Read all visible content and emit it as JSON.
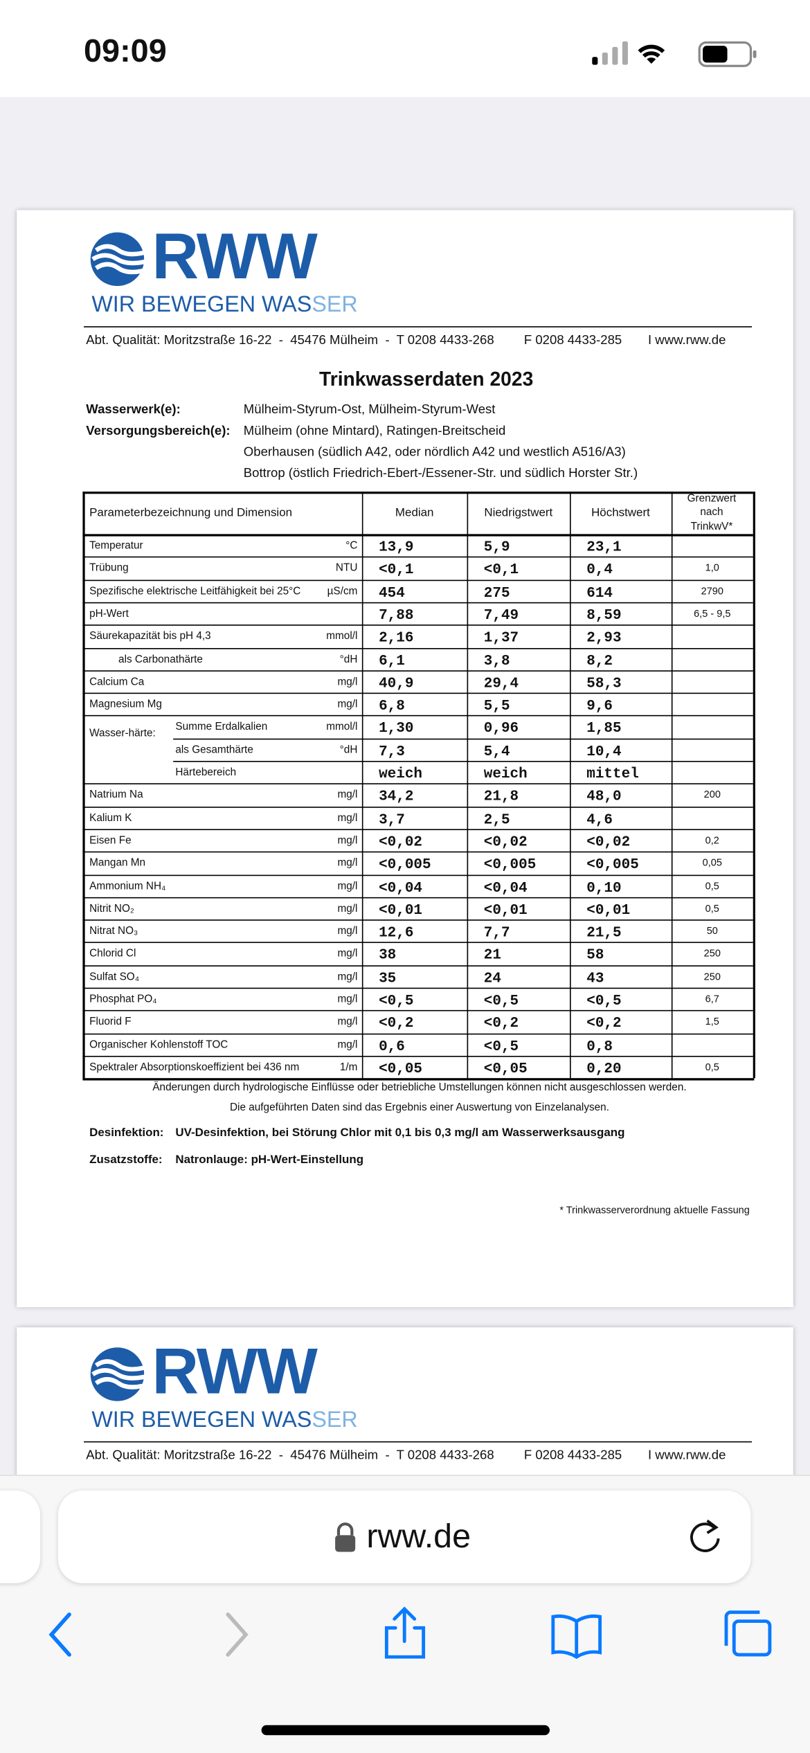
{
  "status_bar": {
    "time": "09:09"
  },
  "page1": {
    "logo": {
      "wordmark": "RWW",
      "tagline_main": "WIR BEWEGEN WAS",
      "tagline_accent": "SER"
    },
    "contact": {
      "address": "Abt. Qualität: Moritzstraße 16-22  -  45476 Mülheim  -  T 0208 4433-268",
      "fax": "F 0208 4433-285",
      "web": "I www.rww.de"
    },
    "title": "Trinkwasserdaten 2023",
    "info": [
      {
        "label": "Wasserwerk(e):",
        "lines": [
          "Mülheim-Styrum-Ost, Mülheim-Styrum-West"
        ]
      },
      {
        "label": "Versorgungsbereich(e):",
        "lines": [
          "Mülheim (ohne Mintard), Ratingen-Breitscheid",
          "Oberhausen (südlich A42, oder nördlich A42 und westlich A516/A3)",
          "Bottrop (östlich Friedrich-Ebert-/Essener-Str. und südlich Horster Str.)"
        ]
      }
    ],
    "table": {
      "headers": [
        "Parameterbezeichnung und Dimension",
        "Median",
        "Niedrigstwert",
        "Höchstwert",
        "Grenzwert nach TrinkwV*"
      ],
      "rows": [
        {
          "name": "Temperatur",
          "unit": "°C",
          "values": [
            "13,9",
            "5,9",
            "23,1"
          ]
        },
        {
          "name": "Trübung",
          "unit": "NTU",
          "values": [
            "<0,1",
            "<0,1",
            "0,4"
          ],
          "limit": "1,0"
        },
        {
          "name": "Spezifische elektrische Leitfähigkeit bei 25°C",
          "unit": "µS/cm",
          "values": [
            "454",
            "275",
            "614"
          ],
          "limit": "2790"
        },
        {
          "name": "pH-Wert",
          "values": [
            "7,88",
            "7,49",
            "8,59"
          ],
          "limit": "6,5 - 9,5"
        },
        {
          "name": "Säurekapazität bis pH 4,3",
          "unit": "mmol/l",
          "values": [
            "2,16",
            "1,37",
            "2,93"
          ],
          "children": [
            {
              "name": "als Carbonathärte",
              "unit": "°dH",
              "values": [
                "6,1",
                "3,8",
                "8,2"
              ]
            }
          ]
        },
        {
          "name": "Calcium Ca",
          "unit": "mg/l",
          "values": [
            "40,9",
            "29,4",
            "58,3"
          ]
        },
        {
          "name": "Magnesium Mg",
          "unit": "mg/l",
          "values": [
            "6,8",
            "5,5",
            "9,6"
          ]
        },
        {
          "label": "Wasser-härte:",
          "children": [
            {
              "name": "Summe Erdalkalien",
              "unit": "mmol/l",
              "values": [
                "1,30",
                "0,96",
                "1,85"
              ]
            },
            {
              "name": "als Gesamthärte",
              "unit": "°dH",
              "values": [
                "7,3",
                "5,4",
                "10,4"
              ]
            },
            {
              "name": "Härtebereich",
              "values": [
                "weich",
                "weich",
                "mittel"
              ]
            }
          ]
        },
        {
          "name": "Natrium Na",
          "unit": "mg/l",
          "values": [
            "34,2",
            "21,8",
            "48,0"
          ],
          "limit": "200"
        },
        {
          "name": "Kalium K",
          "unit": "mg/l",
          "values": [
            "3,7",
            "2,5",
            "4,6"
          ]
        },
        {
          "name": "Eisen Fe",
          "unit": "mg/l",
          "values": [
            "<0,02",
            "<0,02",
            "<0,02"
          ],
          "limit": "0,2"
        },
        {
          "name": "Mangan Mn",
          "unit": "mg/l",
          "values": [
            "<0,005",
            "<0,005",
            "<0,005"
          ],
          "limit": "0,05"
        },
        {
          "name": "Ammonium NH₄",
          "unit": "mg/l",
          "values": [
            "<0,04",
            "<0,04",
            "0,10"
          ],
          "limit": "0,5"
        },
        {
          "name": "Nitrit NO₂",
          "unit": "mg/l",
          "values": [
            "<0,01",
            "<0,01",
            "<0,01"
          ],
          "limit": "0,5"
        },
        {
          "name": "Nitrat NO₃",
          "unit": "mg/l",
          "values": [
            "12,6",
            "7,7",
            "21,5"
          ],
          "limit": "50"
        },
        {
          "name": "Chlorid Cl",
          "unit": "mg/l",
          "values": [
            "38",
            "21",
            "58"
          ],
          "limit": "250"
        },
        {
          "name": "Sulfat SO₄",
          "unit": "mg/l",
          "values": [
            "35",
            "24",
            "43"
          ],
          "limit": "250"
        },
        {
          "name": "Phosphat PO₄",
          "unit": "mg/l",
          "values": [
            "<0,5",
            "<0,5",
            "<0,5"
          ],
          "limit": "6,7"
        },
        {
          "name": "Fluorid F",
          "unit": "mg/l",
          "values": [
            "<0,2",
            "<0,2",
            "<0,2"
          ],
          "limit": "1,5"
        },
        {
          "name": "Organischer Kohlenstoff TOC",
          "unit": "mg/l",
          "values": [
            "0,6",
            "<0,5",
            "0,8"
          ]
        },
        {
          "name": "Spektraler Absorptionskoeffizient bei 436 nm",
          "unit": "1/m",
          "values": [
            "<0,05",
            "<0,05",
            "0,20"
          ],
          "limit": "0,5"
        }
      ]
    },
    "notes": [
      "Änderungen durch hydrologische Einflüsse oder betriebliche Umstellungen können nicht ausgeschlossen werden.",
      "Die aufgeführten Daten sind das Ergebnis einer Auswertung von Einzelanalysen."
    ],
    "treatment": [
      {
        "label": "Desinfektion:",
        "text": "UV-Desinfektion, bei Störung Chlor mit 0,1 bis 0,3 mg/l am Wasserwerksausgang"
      },
      {
        "label": "Zusatzstoffe:",
        "text": "Natronlauge: pH-Wert-Einstellung"
      }
    ],
    "footnote": "* Trinkwasserverordnung aktuelle Fassung"
  },
  "page2": {
    "logo": {
      "wordmark": "RWW",
      "tagline_main": "WIR BEWEGEN WAS",
      "tagline_accent": "SER"
    },
    "contact": {
      "address": "Abt. Qualität: Moritzstraße 16-22  -  45476 Mülheim  -  T 0208 4433-268",
      "fax": "F 0208 4433-285",
      "web": "I www.rww.de"
    }
  },
  "browser": {
    "url": "rww.de"
  }
}
